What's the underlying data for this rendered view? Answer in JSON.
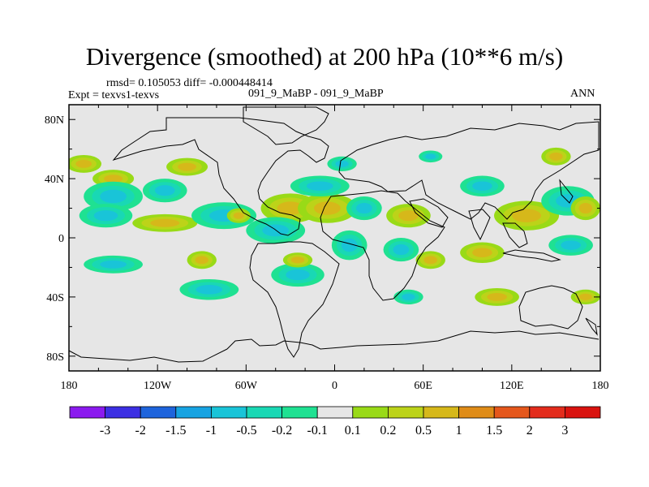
{
  "title": "Divergence (smoothed) at 200 hPa (10**6 m/s)",
  "stats_text": "rmsd= 0.105053 diff= -0.000448414",
  "experiment_text": "Expt = texvs1-texvs",
  "case_text": "091_9_MaBP - 091_9_MaBP",
  "season_text": "ANN",
  "chart_data": {
    "type": "heatmap",
    "title": "Divergence (smoothed) at 200 hPa (10**6 m/s)",
    "variable": "divergence difference",
    "units": "10**6 m/s",
    "x_axis": {
      "range": [
        -180,
        180
      ],
      "ticks": [
        -180,
        -120,
        -60,
        0,
        60,
        120,
        180
      ],
      "tick_labels": [
        "180",
        "120W",
        "60W",
        "0",
        "60E",
        "120E",
        "180"
      ]
    },
    "y_axis": {
      "range": [
        -90,
        90
      ],
      "ticks": [
        80,
        40,
        0,
        -40,
        -80
      ],
      "tick_labels": [
        "80N",
        "40N",
        "0",
        "40S",
        "80S"
      ]
    },
    "colorbar": {
      "levels": [
        -3,
        -2,
        -1.5,
        -1,
        -0.5,
        -0.2,
        -0.1,
        0.1,
        0.2,
        0.5,
        1,
        1.5,
        2,
        3
      ],
      "labels": [
        "-3",
        "-2",
        "-1.5",
        "-1",
        "-0.5",
        "-0.2",
        "-0.1",
        "0.1",
        "0.2",
        "0.5",
        "1",
        "1.5",
        "2",
        "3"
      ],
      "colors": [
        "#8b1aef",
        "#3c2fe3",
        "#1e64dc",
        "#17a3e2",
        "#19c4d8",
        "#19d8b4",
        "#1fe192",
        "#e6e6e6",
        "#99da17",
        "#bcd319",
        "#d6b81a",
        "#df8c18",
        "#e5571c",
        "#e32c1c",
        "#d9130f"
      ]
    },
    "features": [
      {
        "type": "positive",
        "lon": -170,
        "lat": 50,
        "rx": 12,
        "ry": 6
      },
      {
        "type": "positive",
        "lon": -150,
        "lat": 40,
        "rx": 14,
        "ry": 6
      },
      {
        "type": "negative",
        "lon": -150,
        "lat": 28,
        "rx": 20,
        "ry": 10
      },
      {
        "type": "negative",
        "lon": -115,
        "lat": 32,
        "rx": 15,
        "ry": 8
      },
      {
        "type": "positive",
        "lon": -100,
        "lat": 48,
        "rx": 14,
        "ry": 6
      },
      {
        "type": "positive",
        "lon": -115,
        "lat": 10,
        "rx": 22,
        "ry": 6
      },
      {
        "type": "negative",
        "lon": -155,
        "lat": 15,
        "rx": 18,
        "ry": 8
      },
      {
        "type": "negative",
        "lon": -75,
        "lat": 15,
        "rx": 22,
        "ry": 9
      },
      {
        "type": "positive",
        "lon": -65,
        "lat": 15,
        "rx": 8,
        "ry": 5
      },
      {
        "type": "positive",
        "lon": -30,
        "lat": 20,
        "rx": 20,
        "ry": 10
      },
      {
        "type": "negative",
        "lon": -40,
        "lat": 5,
        "rx": 20,
        "ry": 9
      },
      {
        "type": "positive",
        "lon": -5,
        "lat": 20,
        "rx": 20,
        "ry": 10
      },
      {
        "type": "negative",
        "lon": 20,
        "lat": 20,
        "rx": 12,
        "ry": 8
      },
      {
        "type": "positive",
        "lon": 50,
        "lat": 15,
        "rx": 15,
        "ry": 8
      },
      {
        "type": "negative",
        "lon": 45,
        "lat": -8,
        "rx": 12,
        "ry": 8
      },
      {
        "type": "positive",
        "lon": 65,
        "lat": -15,
        "rx": 10,
        "ry": 6
      },
      {
        "type": "negative",
        "lon": 10,
        "lat": -5,
        "rx": 12,
        "ry": 10
      },
      {
        "type": "negative",
        "lon": -10,
        "lat": 35,
        "rx": 20,
        "ry": 7
      },
      {
        "type": "negative",
        "lon": 5,
        "lat": 50,
        "rx": 10,
        "ry": 5
      },
      {
        "type": "negative",
        "lon": 65,
        "lat": 55,
        "rx": 8,
        "ry": 4
      },
      {
        "type": "positive",
        "lon": 130,
        "lat": 15,
        "rx": 22,
        "ry": 10
      },
      {
        "type": "negative",
        "lon": 100,
        "lat": 35,
        "rx": 15,
        "ry": 7
      },
      {
        "type": "negative",
        "lon": 158,
        "lat": 25,
        "rx": 18,
        "ry": 10
      },
      {
        "type": "positive",
        "lon": 170,
        "lat": 20,
        "rx": 10,
        "ry": 8
      },
      {
        "type": "positive",
        "lon": 150,
        "lat": 55,
        "rx": 10,
        "ry": 6
      },
      {
        "type": "negative",
        "lon": 160,
        "lat": -5,
        "rx": 15,
        "ry": 7
      },
      {
        "type": "positive",
        "lon": 100,
        "lat": -10,
        "rx": 15,
        "ry": 7
      },
      {
        "type": "negative",
        "lon": -150,
        "lat": -18,
        "rx": 20,
        "ry": 6
      },
      {
        "type": "positive",
        "lon": -90,
        "lat": -15,
        "rx": 10,
        "ry": 6
      },
      {
        "type": "negative",
        "lon": -85,
        "lat": -35,
        "rx": 20,
        "ry": 7
      },
      {
        "type": "negative",
        "lon": -25,
        "lat": -25,
        "rx": 18,
        "ry": 8
      },
      {
        "type": "positive",
        "lon": -25,
        "lat": -15,
        "rx": 10,
        "ry": 5
      },
      {
        "type": "negative",
        "lon": 50,
        "lat": -40,
        "rx": 10,
        "ry": 5
      },
      {
        "type": "positive",
        "lon": 110,
        "lat": -40,
        "rx": 15,
        "ry": 6
      },
      {
        "type": "positive",
        "lon": 170,
        "lat": -40,
        "rx": 10,
        "ry": 5
      }
    ]
  }
}
